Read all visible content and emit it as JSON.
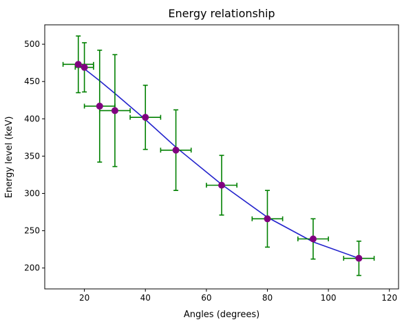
{
  "chart_data": {
    "type": "scatter",
    "title": "Energy relationship",
    "xlabel": "Angles (degrees)",
    "ylabel": "Energy level (keV)",
    "xlim": [
      7,
      123
    ],
    "ylim": [
      172,
      526
    ],
    "xticks": [
      20,
      40,
      60,
      80,
      100,
      120
    ],
    "yticks": [
      200,
      250,
      300,
      350,
      400,
      450,
      500
    ],
    "grid": false,
    "legend": "none",
    "colors": {
      "fit_line": "#2222cc",
      "points": "#800080",
      "errorbars": "#008000",
      "axes": "#000000"
    },
    "points": [
      {
        "x": 18,
        "y": 473,
        "xerr": 5,
        "yerr": 38
      },
      {
        "x": 20,
        "y": 469,
        "xerr": 3,
        "yerr": 33
      },
      {
        "x": 25,
        "y": 417,
        "xerr": 5,
        "yerr": 75
      },
      {
        "x": 30,
        "y": 411,
        "xerr": 5,
        "yerr": 75
      },
      {
        "x": 40,
        "y": 402,
        "xerr": 5,
        "yerr": 43
      },
      {
        "x": 50,
        "y": 358,
        "xerr": 5,
        "yerr": 54
      },
      {
        "x": 65,
        "y": 311,
        "xerr": 5,
        "yerr": 40
      },
      {
        "x": 80,
        "y": 266,
        "xerr": 5,
        "yerr": 38
      },
      {
        "x": 95,
        "y": 239,
        "xerr": 5,
        "yerr": 27
      },
      {
        "x": 110,
        "y": 213,
        "xerr": 5,
        "yerr": 23
      }
    ],
    "fit_line": {
      "x": [
        18,
        20,
        25,
        30,
        40,
        50,
        65,
        80,
        95,
        110
      ],
      "y": [
        473,
        467,
        451,
        434,
        399,
        362,
        312,
        268,
        235,
        213
      ]
    }
  }
}
